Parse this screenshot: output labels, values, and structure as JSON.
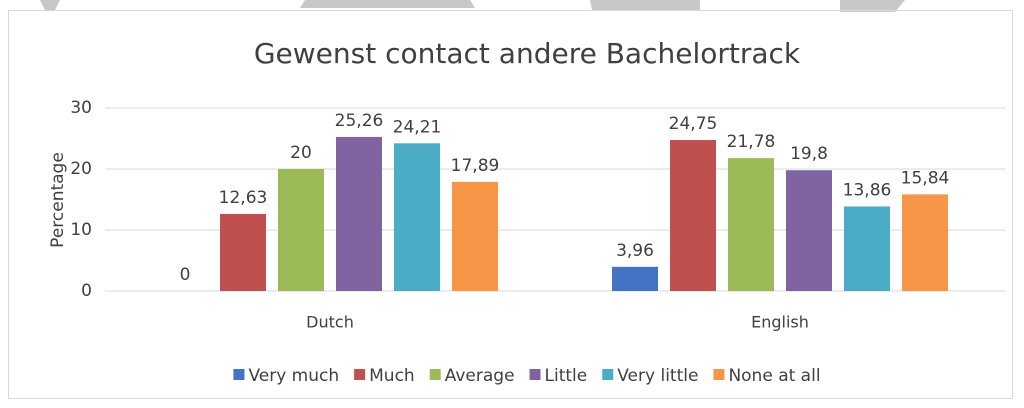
{
  "chart_data": {
    "type": "bar",
    "title": "Gewenst contact andere Bachelortrack",
    "y_label": "Percentage",
    "categories": [
      "Dutch",
      "English"
    ],
    "series": [
      {
        "name": "Very much",
        "color": "#4472c4",
        "values": [
          0,
          3.96
        ],
        "value_labels": [
          "0",
          "3,96"
        ]
      },
      {
        "name": "Much",
        "color": "#c0504d",
        "values": [
          12.63,
          24.75
        ],
        "value_labels": [
          "12,63",
          "24,75"
        ]
      },
      {
        "name": "Average",
        "color": "#9bbb59",
        "values": [
          20,
          21.78
        ],
        "value_labels": [
          "20",
          "21,78"
        ]
      },
      {
        "name": "Little",
        "color": "#8064a2",
        "values": [
          25.26,
          19.8
        ],
        "value_labels": [
          "25,26",
          "19,8"
        ]
      },
      {
        "name": "Very little",
        "color": "#4bacc6",
        "values": [
          24.21,
          13.86
        ],
        "value_labels": [
          "24,21",
          "13,86"
        ]
      },
      {
        "name": "None at all",
        "color": "#f79646",
        "values": [
          17.89,
          15.84
        ],
        "value_labels": [
          "17,89",
          "15,84"
        ]
      }
    ],
    "ylim": [
      0,
      30
    ],
    "yticks": [
      0,
      10,
      20,
      30
    ],
    "grid": true,
    "legend": "bottom"
  }
}
